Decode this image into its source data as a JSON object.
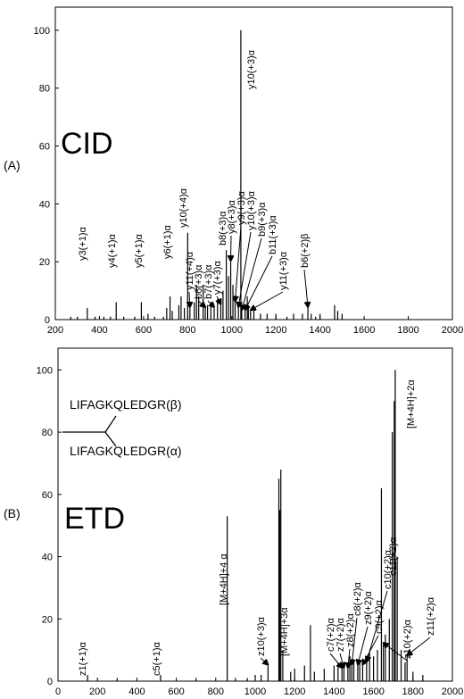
{
  "chart_data": [
    {
      "type": "spectrum",
      "panel_label": "(A)",
      "title": "CID",
      "color": "#000000",
      "xlim": [
        200,
        2000
      ],
      "xticks": [
        200,
        400,
        600,
        800,
        1000,
        1200,
        1400,
        1600,
        1800,
        2000
      ],
      "ylim": [
        0,
        108
      ],
      "yticks": [
        0,
        20,
        40,
        60,
        80,
        100
      ],
      "x": [
        345,
        476,
        590,
        720,
        800,
        810,
        880,
        920,
        950,
        975,
        995,
        1015,
        1030,
        1045,
        1060,
        1085,
        1041,
        1345,
        270,
        300,
        380,
        420,
        450,
        510,
        560,
        620,
        650,
        690,
        705,
        730,
        760,
        770,
        785,
        830,
        840,
        850,
        870,
        890,
        905,
        935,
        960,
        985,
        1005,
        1070,
        1075,
        1100,
        1130,
        1160,
        1200,
        1250,
        1280,
        1320,
        1360,
        1380,
        1400,
        1466,
        1480,
        1500
      ],
      "values": [
        4,
        6,
        6,
        8,
        30,
        4,
        4,
        4,
        5,
        24,
        20,
        6,
        4,
        3,
        3,
        3,
        100,
        4,
        1,
        1,
        1,
        1,
        1,
        1,
        1,
        2,
        1,
        1,
        4,
        3,
        5,
        8,
        4,
        6,
        12,
        8,
        12,
        5,
        6,
        7,
        10,
        15,
        12,
        8,
        5,
        3,
        2,
        2,
        2,
        1,
        2,
        2,
        2,
        1,
        2,
        5,
        3,
        2
      ],
      "labels": [
        "y3(+1)α",
        "y4(+1)α",
        "y5(+1)α",
        "y6(+1)α",
        "y10(+4)α",
        "y11(+4)α",
        "b6(+3)α",
        "b7(+3)α",
        "y7(+3)α",
        "b8(+3)α",
        "y8(+3)α",
        "y9(+3)α",
        "y10(+3)α",
        "b9(+3)α",
        "b11(+3)α",
        "y11(+3)α",
        "y10(+3)α",
        "b6(+2)β",
        null,
        null,
        null,
        null,
        null,
        null,
        null,
        null,
        null,
        null,
        null,
        null,
        null,
        null,
        null,
        null,
        null,
        null,
        null,
        null,
        null,
        null,
        null,
        null,
        null,
        null,
        null,
        null,
        null,
        null,
        null,
        null,
        null,
        null,
        null,
        null,
        null,
        null,
        null,
        null
      ]
    },
    {
      "type": "spectrum",
      "panel_label": "(B)",
      "title": "ETD",
      "color": "#000000",
      "sequence_beta": "LIFAGKQLEDGR(β)",
      "sequence_alpha": "LIFAGKQLEDGR(α)",
      "xlim": [
        0,
        2000
      ],
      "xticks": [
        0,
        200,
        400,
        600,
        800,
        1000,
        1200,
        1400,
        1600,
        1800,
        2000
      ],
      "ylim": [
        0,
        107
      ],
      "yticks": [
        0,
        20,
        40,
        60,
        80,
        100
      ],
      "x": [
        150,
        520,
        858,
        1065,
        1130,
        1440,
        1450,
        1470,
        1490,
        1520,
        1545,
        1565,
        1640,
        1650,
        1710,
        1770,
        1120,
        1125,
        1140,
        1280,
        1180,
        1200,
        1250,
        1300,
        1350,
        1400,
        1420,
        1480,
        1500,
        1530,
        1580,
        1600,
        1620,
        1660,
        1680,
        1695,
        1705,
        1720,
        1740,
        1760,
        1800,
        1850,
        900,
        1000,
        960,
        300,
        700,
        1030
      ],
      "values": [
        2,
        2,
        53,
        5,
        68,
        4,
        4,
        4,
        5,
        5,
        5,
        6,
        62,
        12,
        100,
        8,
        65,
        55,
        10,
        18,
        3,
        4,
        5,
        3,
        4,
        5,
        6,
        8,
        7,
        6,
        9,
        8,
        10,
        15,
        20,
        80,
        90,
        40,
        10,
        6,
        3,
        2,
        1,
        2,
        1,
        1,
        1,
        2
      ],
      "labels": [
        "z1(+1)α",
        "c5(+1)α",
        "[M+4H]+4 α",
        "z10(+3)α",
        "[M+4H]+3α",
        "c7(+2)α",
        "z7(+2)α",
        "z8(+2)α",
        "c8(+2)α",
        "z9(+2)α",
        "c9(+2)α",
        "c10(+2)α",
        "c11(+2)α",
        "z10(+2)α",
        "[M+4H]+2α",
        "z11(+2)α",
        null,
        null,
        null,
        null,
        null,
        null,
        null,
        null,
        null,
        null,
        null,
        null,
        null,
        null,
        null,
        null,
        null,
        null,
        null,
        null,
        null,
        null,
        null,
        null,
        null,
        null,
        null,
        null,
        null,
        null,
        null,
        null
      ]
    }
  ]
}
